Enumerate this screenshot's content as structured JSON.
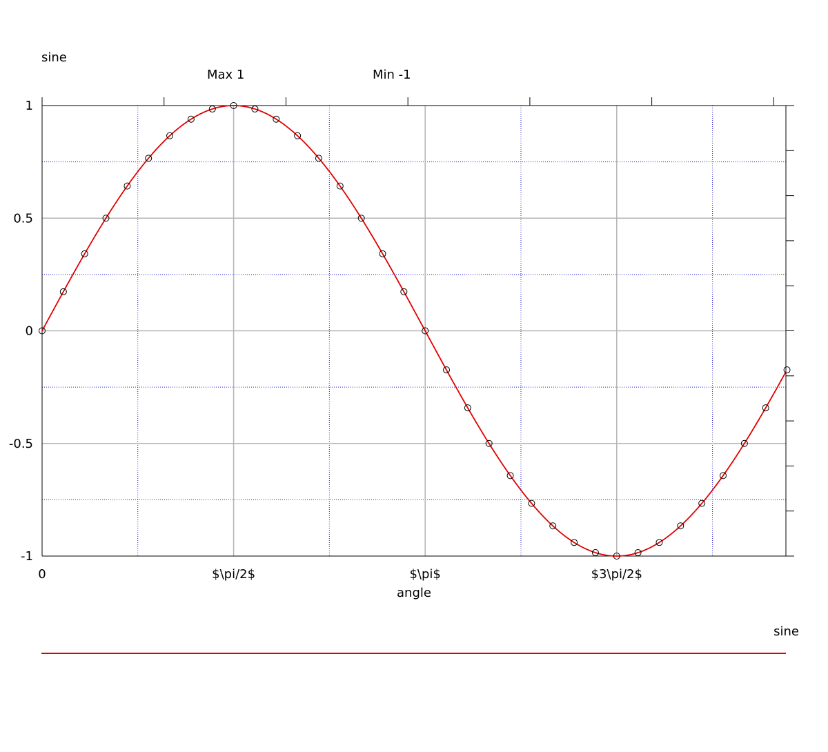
{
  "chart_data": {
    "type": "line",
    "ylabel": "sine",
    "xlabel": "angle",
    "top_annotations": [
      "Max 1",
      "Min -1"
    ],
    "x_tick_labels": [
      "0",
      "$\\pi/2$",
      "$\\pi$",
      "$3\\pi/2$"
    ],
    "x_ticks": [
      0,
      1.5708,
      3.1416,
      4.7124
    ],
    "xlim": [
      0,
      6.1
    ],
    "ylim": [
      -1,
      1
    ],
    "y_ticks": [
      -1,
      -0.5,
      0,
      0.5,
      1
    ],
    "y_tick_labels": [
      "-1",
      "-0.5",
      "0",
      "0.5",
      "1"
    ],
    "minor_x_grid": [
      0.785,
      2.356,
      3.927,
      5.498
    ],
    "minor_y_grid": [
      -0.75,
      -0.25,
      0.25,
      0.75
    ],
    "top_axis_ticks": [
      1.0,
      2.0,
      3.0,
      4.0,
      5.0,
      6.0
    ],
    "right_axis_ticks": [
      -1,
      -0.8,
      -0.6,
      -0.4,
      -0.2,
      0,
      0.2,
      0.4,
      0.6,
      0.8,
      1
    ],
    "grid": true,
    "legend": {
      "label": "sine",
      "placement": "bottom-right"
    },
    "series": [
      {
        "name": "sine",
        "color": "#e00000",
        "function": "sin",
        "markers_x": [
          0,
          0.1745,
          0.3491,
          0.5236,
          0.6981,
          0.8727,
          1.0472,
          1.2217,
          1.3963,
          1.5708,
          1.7453,
          1.9199,
          2.0944,
          2.2689,
          2.4435,
          2.618,
          2.7925,
          2.9671,
          3.1416,
          3.3161,
          3.4907,
          3.6652,
          3.8397,
          4.0143,
          4.1888,
          4.3633,
          4.5379,
          4.7124,
          4.8869,
          5.0615,
          5.236,
          5.4105,
          5.5851,
          5.7596,
          5.9341,
          6.1087
        ],
        "markers_y": [
          0,
          0.1736,
          0.342,
          0.5,
          0.6428,
          0.766,
          0.866,
          0.9397,
          0.9848,
          1,
          0.9848,
          0.9397,
          0.866,
          0.766,
          0.6428,
          0.5,
          0.342,
          0.1736,
          0,
          -0.1736,
          -0.342,
          -0.5,
          -0.6428,
          -0.766,
          -0.866,
          -0.9397,
          -0.9848,
          -1,
          -0.9848,
          -0.9397,
          -0.866,
          -0.766,
          -0.6428,
          -0.5,
          -0.342,
          -0.1736
        ]
      }
    ],
    "colors": {
      "major_grid": "#b4b4b4",
      "minor_grid": "#2020d0",
      "line": "#e00000",
      "marker": "#000000"
    }
  }
}
